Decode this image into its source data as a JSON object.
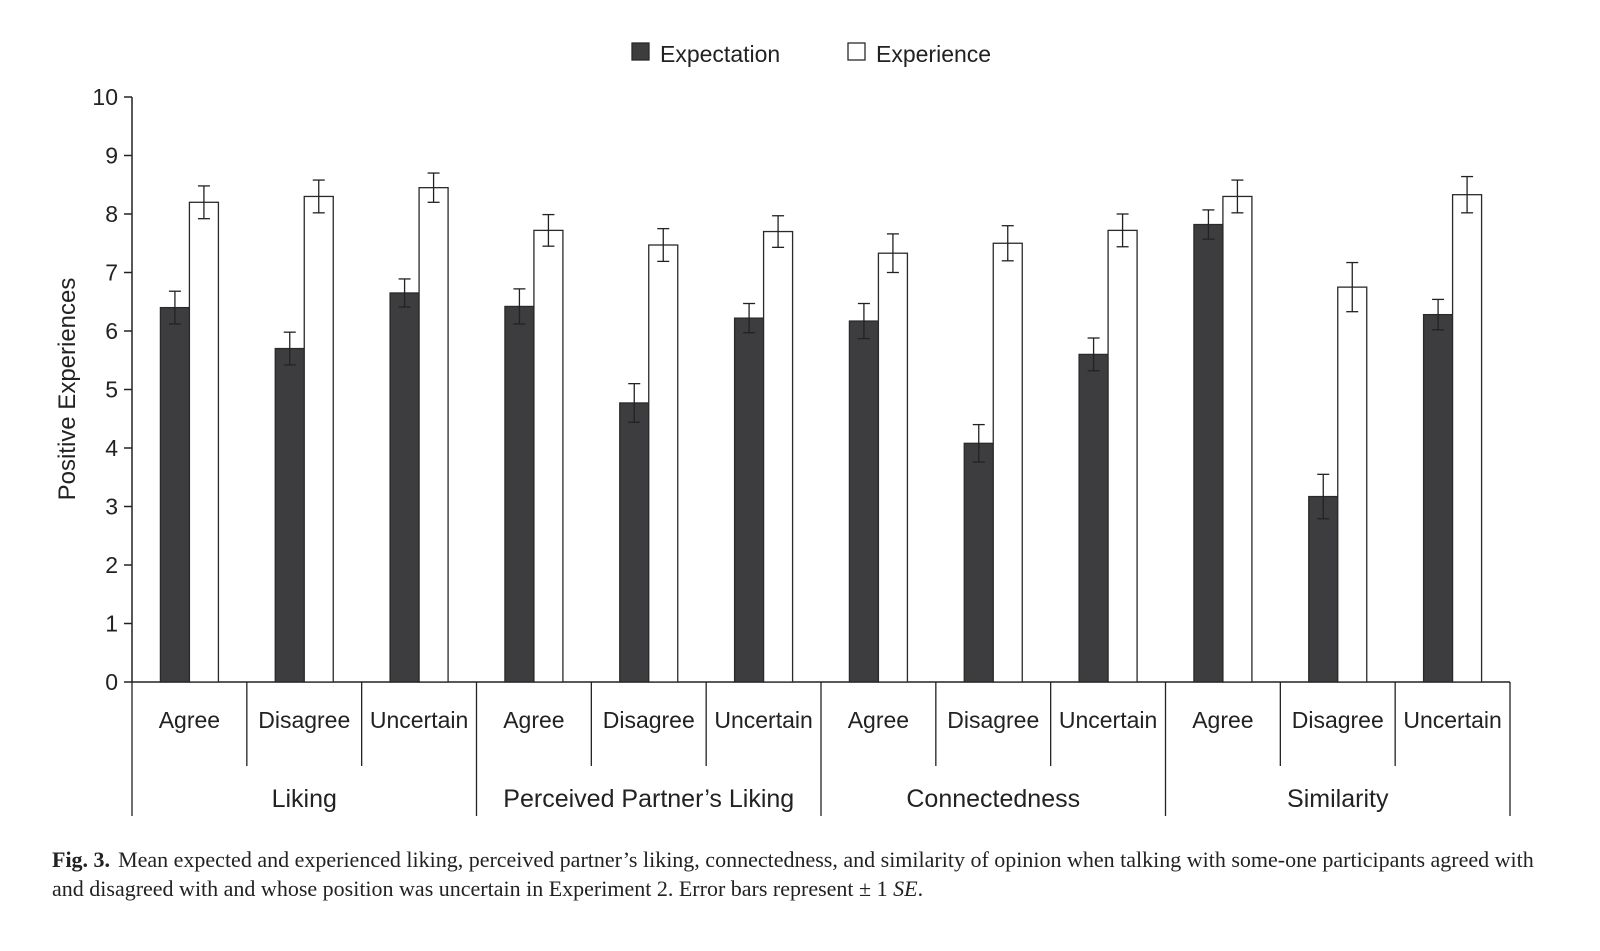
{
  "chart_data": {
    "type": "bar",
    "ylabel": "Positive Experiences",
    "ylim": [
      0,
      10
    ],
    "yticks": [
      "0",
      "1",
      "2",
      "3",
      "4",
      "5",
      "6",
      "7",
      "8",
      "9",
      "10"
    ],
    "grid": false,
    "legend_position": "top-center",
    "groups": [
      {
        "label": "Liking",
        "categories": [
          "Agree",
          "Disagree",
          "Uncertain"
        ]
      },
      {
        "label": "Perceived Partner’s Liking",
        "categories": [
          "Agree",
          "Disagree",
          "Uncertain"
        ]
      },
      {
        "label": "Connectedness",
        "categories": [
          "Agree",
          "Disagree",
          "Uncertain"
        ]
      },
      {
        "label": "Similarity",
        "categories": [
          "Agree",
          "Disagree",
          "Uncertain"
        ]
      }
    ],
    "series": [
      {
        "name": "Expectation",
        "color": "#3d3d40",
        "values": [
          6.4,
          5.7,
          6.65,
          6.42,
          4.77,
          6.22,
          6.17,
          4.08,
          5.6,
          7.82,
          3.17,
          6.28
        ],
        "errors": [
          0.28,
          0.28,
          0.24,
          0.3,
          0.33,
          0.25,
          0.3,
          0.32,
          0.28,
          0.25,
          0.38,
          0.26
        ]
      },
      {
        "name": "Experience",
        "color": "#ffffff",
        "values": [
          8.2,
          8.3,
          8.45,
          7.72,
          7.47,
          7.7,
          7.33,
          7.5,
          7.72,
          8.3,
          6.75,
          8.33
        ],
        "errors": [
          0.28,
          0.28,
          0.25,
          0.27,
          0.28,
          0.27,
          0.33,
          0.3,
          0.28,
          0.28,
          0.42,
          0.31
        ]
      }
    ]
  },
  "caption": {
    "label": "Fig. 3.",
    "text": "Mean expected and experienced liking, perceived partner’s liking, connectedness, and similarity of opinion when talking with some-one participants agreed with and disagreed with and whose position was uncertain in Experiment 2. Error bars represent ± 1",
    "se": "SE",
    "end": "."
  }
}
